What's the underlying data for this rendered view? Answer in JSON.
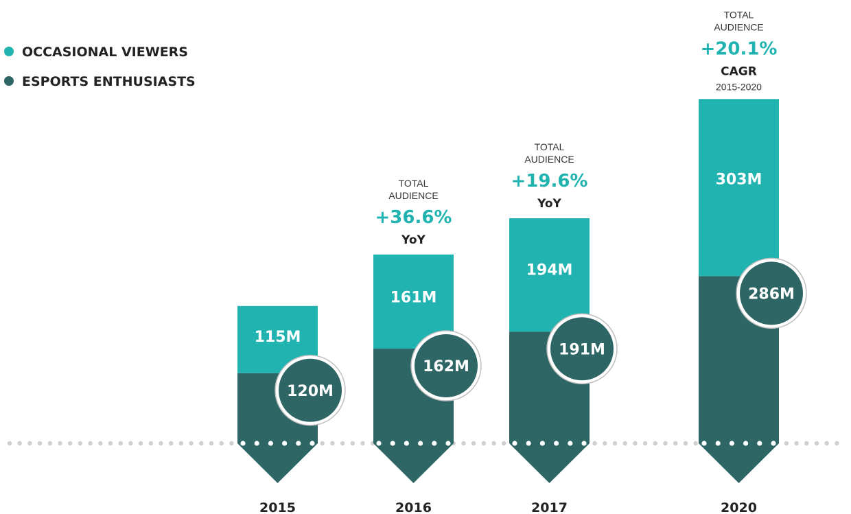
{
  "colors": {
    "occasional": "#21b3b0",
    "enthusiasts": "#2e6565",
    "baseline_light": "#cfcfcf",
    "baseline_dot": "#ffffff",
    "accent_text": "#21b3b0"
  },
  "legend": [
    {
      "label": "OCCASIONAL VIEWERS",
      "color_key": "occasional"
    },
    {
      "label": "ESPORTS ENTHUSIASTS",
      "color_key": "enthusiasts"
    }
  ],
  "chart_data": {
    "type": "bar",
    "stacked": true,
    "categories": [
      "2015",
      "2016",
      "2017",
      "2020"
    ],
    "series": [
      {
        "name": "ESPORTS ENTHUSIASTS",
        "values": [
          120,
          162,
          191,
          286
        ],
        "labels": [
          "120M",
          "162M",
          "191M",
          "286M"
        ]
      },
      {
        "name": "OCCASIONAL VIEWERS",
        "values": [
          115,
          161,
          194,
          303
        ],
        "labels": [
          "115M",
          "161M",
          "194M",
          "303M"
        ]
      }
    ],
    "annotations": [
      null,
      {
        "line1": "TOTAL",
        "line2": "AUDIENCE",
        "pct": "+36.6%",
        "bold": "YoY",
        "sub": ""
      },
      {
        "line1": "TOTAL",
        "line2": "AUDIENCE",
        "pct": "+19.6%",
        "bold": "YoY",
        "sub": ""
      },
      {
        "line1": "TOTAL",
        "line2": "AUDIENCE",
        "pct": "+20.1%",
        "bold": "CAGR",
        "sub": "2015-2020"
      }
    ],
    "legend_position": "top-left",
    "grid": false
  }
}
